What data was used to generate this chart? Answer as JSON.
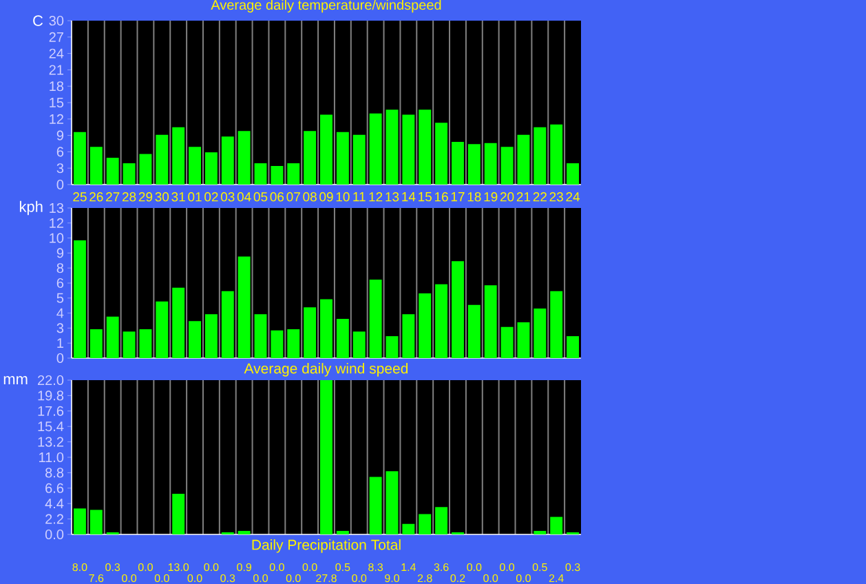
{
  "chart_data": [
    {
      "type": "bar",
      "title": "Average daily temperature/windspeed",
      "ylabel": "C",
      "categories": [
        "25",
        "26",
        "27",
        "28",
        "29",
        "30",
        "31",
        "01",
        "02",
        "03",
        "04",
        "05",
        "06",
        "07",
        "08",
        "09",
        "10",
        "11",
        "12",
        "13",
        "14",
        "15",
        "16",
        "17",
        "18",
        "19",
        "20",
        "21",
        "22",
        "23",
        "24"
      ],
      "values": [
        9.6,
        6.9,
        4.9,
        3.9,
        5.6,
        9.1,
        10.5,
        6.9,
        5.9,
        8.8,
        9.8,
        3.9,
        3.4,
        3.9,
        9.8,
        12.8,
        9.6,
        9.1,
        13.0,
        13.7,
        12.8,
        13.7,
        11.3,
        7.8,
        7.4,
        7.6,
        6.9,
        9.1,
        10.5,
        11.0,
        3.9
      ],
      "color": "#00ff00",
      "ylim": [
        0,
        30
      ],
      "yticks": [
        0,
        3,
        6,
        9,
        12,
        15,
        18,
        21,
        24,
        27,
        30
      ],
      "grid": "x"
    },
    {
      "type": "bar",
      "xlabel": "Average daily wind speed",
      "ylabel": "kph",
      "categories": [
        "25",
        "26",
        "27",
        "28",
        "29",
        "30",
        "31",
        "01",
        "02",
        "03",
        "04",
        "05",
        "06",
        "07",
        "08",
        "09",
        "10",
        "11",
        "12",
        "13",
        "14",
        "15",
        "16",
        "17",
        "18",
        "19",
        "20",
        "21",
        "22",
        "23",
        "24"
      ],
      "values": [
        10.2,
        2.5,
        3.6,
        2.3,
        2.5,
        4.9,
        6.1,
        3.2,
        3.8,
        5.8,
        8.8,
        3.8,
        2.4,
        2.5,
        4.4,
        5.1,
        3.4,
        2.3,
        6.8,
        1.9,
        3.8,
        5.6,
        6.4,
        8.4,
        4.6,
        6.3,
        2.7,
        3.1,
        4.3,
        5.8,
        1.9
      ],
      "color": "#00ff00",
      "ylim": [
        0,
        13
      ],
      "yticks": [
        {
          "value": 0,
          "label": "0"
        },
        {
          "value": 1.3,
          "label": "1"
        },
        {
          "value": 2.6,
          "label": "3"
        },
        {
          "value": 3.9,
          "label": "4"
        },
        {
          "value": 5.2,
          "label": "5"
        },
        {
          "value": 6.5,
          "label": "6"
        },
        {
          "value": 7.8,
          "label": "8"
        },
        {
          "value": 9.1,
          "label": "9"
        },
        {
          "value": 10.4,
          "label": "10"
        },
        {
          "value": 11.7,
          "label": "12"
        },
        {
          "value": 13,
          "label": "13"
        }
      ],
      "grid": "x",
      "tick_labels": "y"
    },
    {
      "type": "bar",
      "xlabel": "Daily Precipitation Total",
      "ylabel": "mm",
      "categories": [
        "8.0",
        "7.6",
        "0.3",
        "0.0",
        "0.0",
        "0.0",
        "13.0",
        "0.0",
        "0.0",
        "0.3",
        "0.9",
        "0.0",
        "0.0",
        "0.0",
        "0.0",
        "27.8",
        "0.5",
        "0.0",
        "8.3",
        "9.0",
        "1.4",
        "2.8",
        "3.6",
        "0.2",
        "0.0",
        "0.0",
        "0.0",
        "0.0",
        "0.5",
        "2.4",
        "0.3"
      ],
      "values": [
        3.7,
        3.5,
        0.3,
        0,
        0,
        0,
        5.8,
        0,
        0,
        0.3,
        0.5,
        0,
        0,
        0,
        0,
        22,
        0.5,
        0,
        8.2,
        9.0,
        1.5,
        2.9,
        3.9,
        0.3,
        0,
        0,
        0,
        0,
        0.5,
        2.5,
        0.3
      ],
      "color": "#00ff00",
      "ylim": [
        0,
        22
      ],
      "yticks": [
        {
          "value": 0,
          "label": "0.0"
        },
        {
          "value": 2.2,
          "label": "2.2"
        },
        {
          "value": 4.4,
          "label": "4.4"
        },
        {
          "value": 6.6,
          "label": "6.6"
        },
        {
          "value": 8.8,
          "label": "8.8"
        },
        {
          "value": 11,
          "label": "11.0"
        },
        {
          "value": 13.2,
          "label": "13.2"
        },
        {
          "value": 15.4,
          "label": "15.4"
        },
        {
          "value": 17.6,
          "label": "17.6"
        },
        {
          "value": 19.8,
          "label": "19.8"
        },
        {
          "value": 22,
          "label": "22.0"
        }
      ],
      "grid": "x"
    }
  ]
}
